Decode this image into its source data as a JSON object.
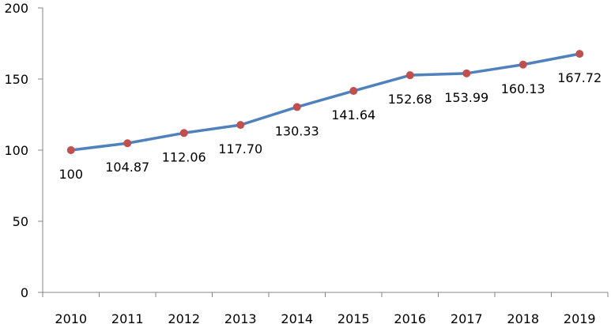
{
  "chart_data": {
    "type": "line",
    "title": "",
    "xlabel": "",
    "ylabel": "",
    "categories": [
      "2010",
      "2011",
      "2012",
      "2013",
      "2014",
      "2015",
      "2016",
      "2017",
      "2018",
      "2019"
    ],
    "series": [
      {
        "values": [
          100,
          104.87,
          112.06,
          117.7,
          130.33,
          141.64,
          152.68,
          153.99,
          160.13,
          167.72
        ],
        "labels": [
          "100",
          "104.87",
          "112.06",
          "117.70",
          "130.33",
          "141.64",
          "152.68",
          "153.99",
          "160.13",
          "167.72"
        ],
        "line_color": "#4F81BD",
        "marker_color": "#C0504D"
      }
    ],
    "ylim": [
      0,
      200
    ],
    "yticks": [
      "0",
      "50",
      "100",
      "150",
      "200"
    ],
    "grid": false,
    "legend": "none"
  }
}
